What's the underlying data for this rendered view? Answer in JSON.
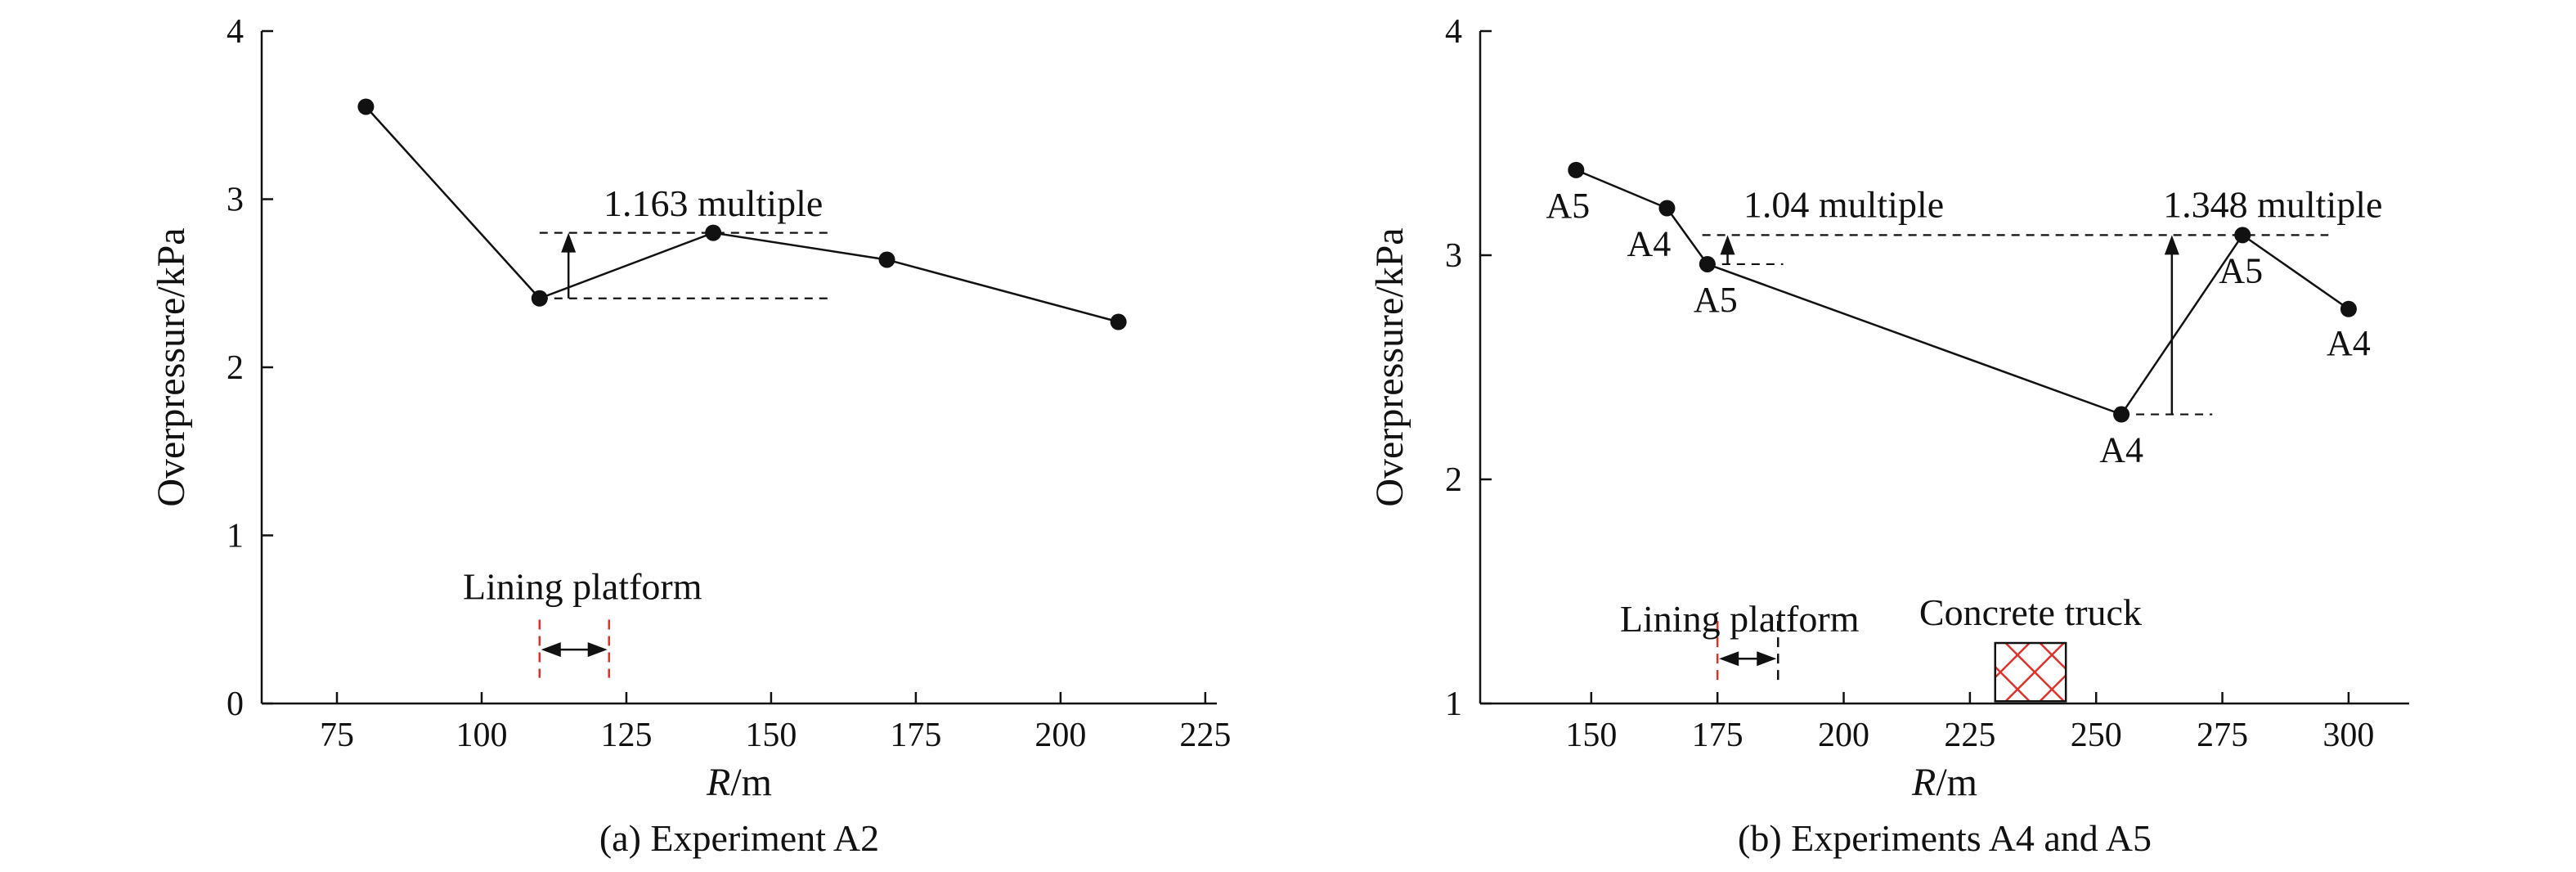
{
  "chart_data": [
    {
      "type": "line",
      "panel": "a",
      "caption": "(a) Experiment A2",
      "xlabel_italic": "R",
      "xlabel_unit": "/m",
      "ylabel": "Overpressure/kPa",
      "xlim": [
        62,
        227
      ],
      "ylim": [
        0,
        4
      ],
      "xticks": [
        75,
        100,
        125,
        150,
        175,
        200,
        225
      ],
      "yticks": [
        0,
        1,
        2,
        3,
        4
      ],
      "grid": false,
      "series": [
        {
          "points": [
            [
              80,
              3.55
            ],
            [
              110,
              2.41
            ],
            [
              140,
              2.8
            ],
            [
              170,
              2.64
            ],
            [
              210,
              2.27
            ]
          ]
        }
      ],
      "annotations": [
        {
          "text": "1.163 multiple",
          "x": 140,
          "y": 2.9
        }
      ],
      "multiplier_marker": {
        "x": 115,
        "y_from": 2.41,
        "y_to": 2.8,
        "dash_low": [
          110,
          160
        ],
        "dash_high": [
          110,
          160
        ]
      },
      "region": {
        "label": "Lining platform",
        "x_from": 110,
        "x_to": 122,
        "y_from": 0.25,
        "y_to": 0.45
      }
    },
    {
      "type": "line",
      "panel": "b",
      "caption": "(b) Experiments A4 and A5",
      "xlabel_italic": "R",
      "xlabel_unit": "/m",
      "ylabel": "Overpressure/kPa",
      "xlim": [
        128,
        312
      ],
      "ylim": [
        1,
        4
      ],
      "xticks": [
        150,
        175,
        200,
        225,
        250,
        275,
        300
      ],
      "yticks": [
        1,
        2,
        3,
        4
      ],
      "grid": false,
      "series": [
        {
          "points": [
            [
              147,
              3.38
            ],
            [
              165,
              3.21
            ],
            [
              173,
              2.96
            ],
            [
              255,
              2.29
            ],
            [
              279,
              3.09
            ],
            [
              300,
              2.76
            ]
          ]
        }
      ],
      "point_labels": [
        {
          "text": "A5",
          "x": 147,
          "y": 3.38
        },
        {
          "text": "A4",
          "x": 165,
          "y": 3.21
        },
        {
          "text": "A5",
          "x": 173,
          "y": 2.96
        },
        {
          "text": "A4",
          "x": 255,
          "y": 2.29
        },
        {
          "text": "A5",
          "x": 279,
          "y": 3.09
        },
        {
          "text": "A4",
          "x": 300,
          "y": 2.76
        }
      ],
      "annotations": [
        {
          "text": "1.04 multiple",
          "x": 200,
          "y": 3.17
        },
        {
          "text": "1.348 multiple",
          "x": 285,
          "y": 3.17
        }
      ],
      "multiplier_markers": [
        {
          "x": 177,
          "y_from": 2.96,
          "y_to": 3.09,
          "dash_low": [
            173,
            188
          ]
        },
        {
          "x": 265,
          "y_from": 2.29,
          "y_to": 3.09,
          "dash_low": [
            255,
            273
          ]
        }
      ],
      "dashed_reference": {
        "y": 3.09,
        "x_from": 172,
        "x_to": 296
      },
      "region": {
        "label": "Lining platform",
        "x_from": 175,
        "x_to": 187,
        "y_from": 1.18,
        "y_to": 1.35
      },
      "box": {
        "label": "Concrete truck",
        "x_from": 230,
        "x_to": 244,
        "y_from": 1.01,
        "y_to": 1.27,
        "fill": "#e0302a"
      }
    }
  ]
}
